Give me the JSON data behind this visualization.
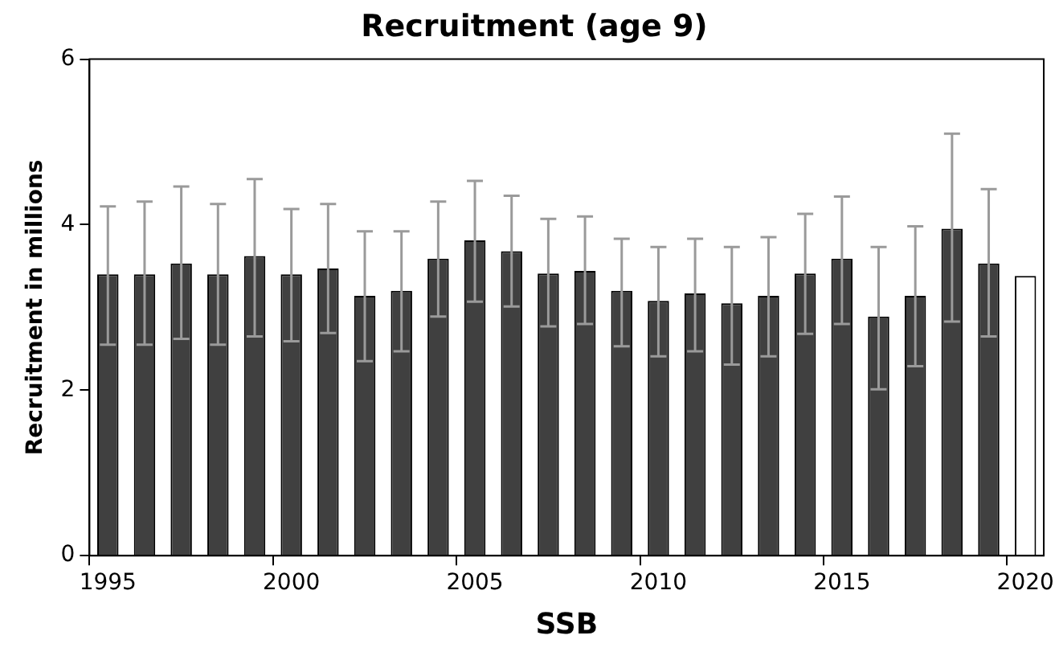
{
  "chart_data": {
    "type": "bar",
    "title": "Recruitment (age 9)",
    "xlabel": "SSB",
    "ylabel": "Recruitment in millions",
    "categories": [
      "1995",
      null,
      null,
      null,
      null,
      "2000",
      null,
      null,
      null,
      null,
      "2005",
      null,
      null,
      null,
      null,
      "2010",
      null,
      null,
      null,
      null,
      "2015",
      null,
      null,
      null,
      null,
      "2020"
    ],
    "values": [
      3.4,
      3.4,
      3.53,
      3.4,
      3.62,
      3.4,
      3.47,
      3.14,
      3.2,
      3.59,
      3.81,
      3.68,
      3.41,
      3.44,
      3.2,
      3.08,
      3.17,
      3.05,
      3.14,
      3.41,
      3.59,
      2.89,
      3.14,
      3.95,
      3.53,
      3.38
    ],
    "colors": [
      "#404040",
      "#404040",
      "#404040",
      "#404040",
      "#404040",
      "#404040",
      "#404040",
      "#404040",
      "#404040",
      "#404040",
      "#404040",
      "#404040",
      "#404040",
      "#404040",
      "#404040",
      "#404040",
      "#404040",
      "#404040",
      "#404040",
      "#404040",
      "#404040",
      "#404040",
      "#404040",
      "#404040",
      "#404040",
      "#ffffff"
    ],
    "errors": [
      [
        2.55,
        4.22
      ],
      [
        2.55,
        4.28
      ],
      [
        2.62,
        4.46
      ],
      [
        2.55,
        4.25
      ],
      [
        2.65,
        4.55
      ],
      [
        2.59,
        4.19
      ],
      [
        2.69,
        4.25
      ],
      [
        2.35,
        3.92
      ],
      [
        2.47,
        3.92
      ],
      [
        2.89,
        4.28
      ],
      [
        3.07,
        4.53
      ],
      [
        3.01,
        4.35
      ],
      [
        2.77,
        4.07
      ],
      [
        2.8,
        4.1
      ],
      [
        2.53,
        3.83
      ],
      [
        2.41,
        3.73
      ],
      [
        2.47,
        3.83
      ],
      [
        2.31,
        3.73
      ],
      [
        2.41,
        3.85
      ],
      [
        2.68,
        4.13
      ],
      [
        2.8,
        4.34
      ],
      [
        2.01,
        3.73
      ],
      [
        2.29,
        3.98
      ],
      [
        2.83,
        5.1
      ],
      [
        2.65,
        4.43
      ],
      null
    ],
    "ylim": [
      0,
      6
    ],
    "yticks": [
      0,
      2,
      4,
      6
    ],
    "grid": false,
    "legend": false
  }
}
